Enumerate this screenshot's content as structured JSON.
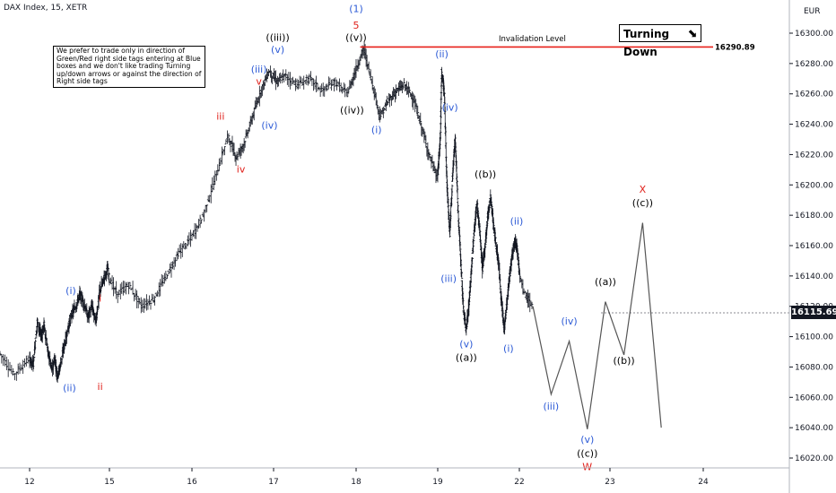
{
  "header": {
    "title": "DAX Index, 15, XETR",
    "currency": "EUR"
  },
  "note": {
    "text": "We prefer to trade only in direction of Green/Red right side tags entering at Blue boxes and we don't like trading Turning up/down arrows or against the direction of Right side tags"
  },
  "turning_down": {
    "label": "Turning Down",
    "arrow_icon": "arrow-down-right-icon"
  },
  "invalidation": {
    "label": "Invalidation Level",
    "price_label": "16290.89",
    "value": 16290.89,
    "color": "#e8201a"
  },
  "last_price": {
    "label": "16115.690"
  },
  "colors": {
    "blue": "#2d5bd6",
    "red": "#e0201a",
    "black": "#000000",
    "bars": "#131722"
  },
  "chart_data": {
    "type": "line",
    "title": "DAX Index, 15, XETR",
    "xlabel": "",
    "ylabel": "EUR",
    "ylim": [
      16015,
      16325
    ],
    "x_ticks": [
      {
        "label": "12",
        "x": 12
      },
      {
        "label": "15",
        "x": 15
      },
      {
        "label": "16",
        "x": 16
      },
      {
        "label": "17",
        "x": 17
      },
      {
        "label": "18",
        "x": 18
      },
      {
        "label": "19",
        "x": 19
      },
      {
        "label": "22",
        "x": 22
      },
      {
        "label": "23",
        "x": 23
      },
      {
        "label": "24",
        "x": 24
      }
    ],
    "y_ticks": [
      16020,
      16040,
      16060,
      16080,
      16100,
      16120,
      16140,
      16160,
      16180,
      16200,
      16220,
      16240,
      16260,
      16280,
      16300
    ],
    "y_tick_labels": [
      "16020.00",
      "16040.00",
      "16060.00",
      "16080.00",
      "16100.00",
      "16120.00",
      "16140.00",
      "16160.00",
      "16180.00",
      "16200.00",
      "16220.00",
      "16240.00",
      "16260.00",
      "16280.00",
      "16300.00"
    ],
    "price_path": [
      [
        11.7,
        16090
      ],
      [
        11.85,
        16075
      ],
      [
        12.0,
        16085
      ],
      [
        12.15,
        16082
      ],
      [
        12.3,
        16110
      ],
      [
        12.45,
        16100
      ],
      [
        12.55,
        16108
      ],
      [
        12.7,
        16090
      ],
      [
        12.85,
        16078
      ],
      [
        12.95,
        16086
      ],
      [
        13.05,
        16074
      ],
      [
        13.15,
        16080
      ],
      [
        13.3,
        16093
      ],
      [
        13.45,
        16105
      ],
      [
        13.6,
        16115
      ],
      [
        13.75,
        16120
      ],
      [
        13.9,
        16128
      ],
      [
        14.05,
        16122
      ],
      [
        14.2,
        16113
      ],
      [
        14.35,
        16120
      ],
      [
        14.5,
        16110
      ],
      [
        14.65,
        16130
      ],
      [
        14.8,
        16138
      ],
      [
        14.95,
        16145
      ],
      [
        15.1,
        16128
      ],
      [
        15.25,
        16134
      ],
      [
        15.4,
        16120
      ],
      [
        15.55,
        16125
      ],
      [
        15.7,
        16140
      ],
      [
        15.85,
        16155
      ],
      [
        16.0,
        16165
      ],
      [
        16.15,
        16180
      ],
      [
        16.3,
        16205
      ],
      [
        16.45,
        16232
      ],
      [
        16.55,
        16218
      ],
      [
        16.65,
        16228
      ],
      [
        16.75,
        16245
      ],
      [
        16.85,
        16262
      ],
      [
        16.95,
        16275
      ],
      [
        17.05,
        16268
      ],
      [
        17.15,
        16272
      ],
      [
        17.3,
        16266
      ],
      [
        17.45,
        16270
      ],
      [
        17.6,
        16262
      ],
      [
        17.75,
        16268
      ],
      [
        17.9,
        16260
      ],
      [
        18.0,
        16275
      ],
      [
        18.1,
        16290
      ],
      [
        18.2,
        16268
      ],
      [
        18.3,
        16245
      ],
      [
        18.4,
        16255
      ],
      [
        18.5,
        16262
      ],
      [
        18.6,
        16266
      ],
      [
        18.7,
        16258
      ],
      [
        18.8,
        16240
      ],
      [
        18.9,
        16220
      ],
      [
        19.0,
        16205
      ],
      [
        19.1,
        16230
      ],
      [
        19.15,
        16275
      ],
      [
        19.25,
        16260
      ],
      [
        19.35,
        16200
      ],
      [
        19.45,
        16168
      ],
      [
        19.55,
        16205
      ],
      [
        19.65,
        16232
      ],
      [
        19.75,
        16185
      ],
      [
        19.85,
        16152
      ],
      [
        19.95,
        16118
      ],
      [
        20.05,
        16105
      ],
      [
        20.15,
        16120
      ],
      [
        20.25,
        16145
      ],
      [
        20.35,
        16170
      ],
      [
        20.45,
        16188
      ],
      [
        20.55,
        16170
      ],
      [
        20.65,
        16145
      ],
      [
        20.75,
        16160
      ],
      [
        20.85,
        16180
      ],
      [
        20.95,
        16192
      ],
      [
        21.05,
        16175
      ],
      [
        21.15,
        16160
      ],
      [
        21.25,
        16148
      ],
      [
        21.35,
        16122
      ],
      [
        21.45,
        16105
      ],
      [
        21.55,
        16122
      ],
      [
        21.65,
        16140
      ],
      [
        21.75,
        16155
      ],
      [
        21.85,
        16165
      ],
      [
        21.95,
        16155
      ],
      [
        22.05,
        16130
      ],
      [
        22.15,
        16120
      ]
    ],
    "projection": {
      "x": [
        22.15,
        22.35,
        22.55,
        22.75,
        22.95,
        23.15,
        23.35,
        23.55
      ],
      "y": [
        16120,
        16062,
        16097,
        16039,
        16123,
        16088,
        16175,
        16040
      ]
    },
    "invalidation_level": 16290.89,
    "last_price": 16115.69,
    "annotations": [
      {
        "text": "(1)",
        "x": 18.0,
        "y": 16314,
        "color": "blue"
      },
      {
        "text": "5",
        "x": 18.0,
        "y": 16303,
        "color": "red"
      },
      {
        "text": "((v))",
        "x": 18.0,
        "y": 16295,
        "color": "black"
      },
      {
        "text": "((iii))",
        "x": 17.05,
        "y": 16295,
        "color": "black"
      },
      {
        "text": "(v)",
        "x": 17.05,
        "y": 16287,
        "color": "blue"
      },
      {
        "text": "(iii)",
        "x": 16.82,
        "y": 16274,
        "color": "blue"
      },
      {
        "text": "v",
        "x": 16.82,
        "y": 16266,
        "color": "red"
      },
      {
        "text": "iii",
        "x": 16.35,
        "y": 16243,
        "color": "red"
      },
      {
        "text": "(iv)",
        "x": 16.95,
        "y": 16237,
        "color": "blue"
      },
      {
        "text": "iv",
        "x": 16.6,
        "y": 16208,
        "color": "red"
      },
      {
        "text": "((iv))",
        "x": 17.95,
        "y": 16247,
        "color": "black"
      },
      {
        "text": "(i)",
        "x": 18.25,
        "y": 16234,
        "color": "blue"
      },
      {
        "text": "(ii)",
        "x": 19.15,
        "y": 16284,
        "color": "blue"
      },
      {
        "text": "(iv)",
        "x": 19.45,
        "y": 16249,
        "color": "blue"
      },
      {
        "text": "(iii)",
        "x": 19.4,
        "y": 16136,
        "color": "blue"
      },
      {
        "text": "((b))",
        "x": 20.75,
        "y": 16205,
        "color": "black"
      },
      {
        "text": "(v)",
        "x": 20.05,
        "y": 16093,
        "color": "blue"
      },
      {
        "text": "((a))",
        "x": 20.05,
        "y": 16084,
        "color": "black"
      },
      {
        "text": "(ii)",
        "x": 21.9,
        "y": 16174,
        "color": "blue"
      },
      {
        "text": "(i)",
        "x": 21.6,
        "y": 16090,
        "color": "blue"
      },
      {
        "text": "(iii)",
        "x": 22.35,
        "y": 16052,
        "color": "blue"
      },
      {
        "text": "(iv)",
        "x": 22.55,
        "y": 16108,
        "color": "blue"
      },
      {
        "text": "(v)",
        "x": 22.75,
        "y": 16030,
        "color": "blue"
      },
      {
        "text": "((c))",
        "x": 22.75,
        "y": 16021,
        "color": "black"
      },
      {
        "text": "W",
        "x": 22.75,
        "y": 16012,
        "color": "red"
      },
      {
        "text": "((a))",
        "x": 22.95,
        "y": 16134,
        "color": "black"
      },
      {
        "text": "((b))",
        "x": 23.15,
        "y": 16082,
        "color": "black"
      },
      {
        "text": "X",
        "x": 23.35,
        "y": 16195,
        "color": "red"
      },
      {
        "text": "((c))",
        "x": 23.35,
        "y": 16186,
        "color": "black"
      },
      {
        "text": "(i)",
        "x": 13.55,
        "y": 16128,
        "color": "blue"
      },
      {
        "text": "(ii)",
        "x": 13.5,
        "y": 16064,
        "color": "blue"
      },
      {
        "text": "i",
        "x": 14.65,
        "y": 16123,
        "color": "red"
      },
      {
        "text": "ii",
        "x": 14.65,
        "y": 16065,
        "color": "red"
      }
    ]
  }
}
